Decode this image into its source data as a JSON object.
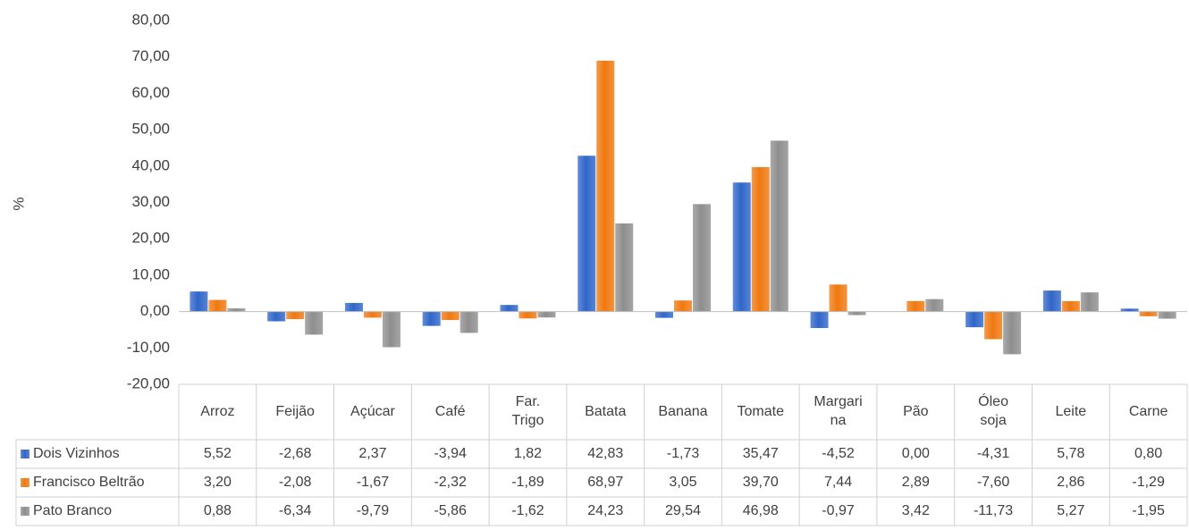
{
  "chart_data": {
    "type": "bar",
    "y_label": "%",
    "categories": [
      "Arroz",
      "Feijão",
      "Açúcar",
      "Café",
      "Far. Trigo",
      "Batata",
      "Banana",
      "Tomate",
      "Margarina",
      "Pão",
      "Óleo soja",
      "Leite",
      "Carne"
    ],
    "series": [
      {
        "name": "Dois Vizinhos",
        "color": "#2f66c9",
        "values": [
          5.52,
          -2.68,
          2.37,
          -3.94,
          1.82,
          42.83,
          -1.73,
          35.47,
          -4.52,
          0.0,
          -4.31,
          5.78,
          0.8
        ],
        "value_labels": [
          "5,52",
          "-2,68",
          "2,37",
          "-3,94",
          "1,82",
          "42,83",
          "-1,73",
          "35,47",
          "-4,52",
          "0,00",
          "-4,31",
          "5,78",
          "0,80"
        ]
      },
      {
        "name": "Francisco Beltrão",
        "color": "#f0780f",
        "values": [
          3.2,
          -2.08,
          -1.67,
          -2.32,
          -1.89,
          68.97,
          3.05,
          39.7,
          7.44,
          2.89,
          -7.6,
          2.86,
          -1.29
        ],
        "value_labels": [
          "3,20",
          "-2,08",
          "-1,67",
          "-2,32",
          "-1,89",
          "68,97",
          "3,05",
          "39,70",
          "7,44",
          "2,89",
          "-7,60",
          "2,86",
          "-1,29"
        ]
      },
      {
        "name": "Pato Branco",
        "color": "#8e8e8e",
        "values": [
          0.88,
          -6.34,
          -9.79,
          -5.86,
          -1.62,
          24.23,
          29.54,
          46.98,
          -0.97,
          3.42,
          -11.73,
          5.27,
          -1.95
        ],
        "value_labels": [
          "0,88",
          "-6,34",
          "-9,79",
          "-5,86",
          "-1,62",
          "24,23",
          "29,54",
          "46,98",
          "-0,97",
          "3,42",
          "-11,73",
          "5,27",
          "-1,95"
        ]
      }
    ],
    "ylim": [
      -20,
      80
    ],
    "yticks": [
      {
        "value": -20,
        "label": "-20,00"
      },
      {
        "value": -10,
        "label": "-10,00"
      },
      {
        "value": 0,
        "label": "0,00"
      },
      {
        "value": 10,
        "label": "10,00"
      },
      {
        "value": 20,
        "label": "20,00"
      },
      {
        "value": 30,
        "label": "30,00"
      },
      {
        "value": 40,
        "label": "40,00"
      },
      {
        "value": 50,
        "label": "50,00"
      },
      {
        "value": 60,
        "label": "60,00"
      },
      {
        "value": 70,
        "label": "70,00"
      },
      {
        "value": 80,
        "label": "80,00"
      }
    ],
    "data_table": true
  }
}
